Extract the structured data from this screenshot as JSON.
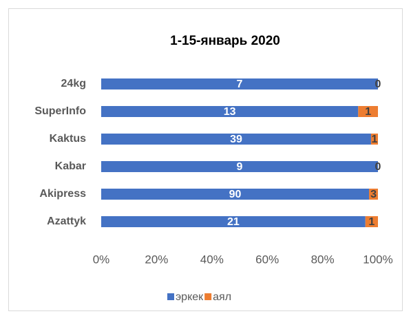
{
  "chart_data": {
    "type": "bar",
    "orientation": "horizontal",
    "stacking": "percent",
    "title": "1-15-январь 2020",
    "categories": [
      "24kg",
      "SuperInfo",
      "Kaktus",
      "Kabar",
      "Akipress",
      "Azattyk"
    ],
    "series": [
      {
        "name": "эркек",
        "color": "#4472c4",
        "values": [
          7,
          13,
          39,
          9,
          90,
          21
        ]
      },
      {
        "name": "аял",
        "color": "#ed7d31",
        "values": [
          0,
          1,
          1,
          0,
          3,
          1
        ]
      }
    ],
    "xlim": [
      0,
      100
    ],
    "xticks": [
      {
        "value": 0,
        "label": "0%"
      },
      {
        "value": 20,
        "label": "20%"
      },
      {
        "value": 40,
        "label": "40%"
      },
      {
        "value": 60,
        "label": "60%"
      },
      {
        "value": 80,
        "label": "80%"
      },
      {
        "value": 100,
        "label": "100%"
      }
    ],
    "legend": "bottom"
  }
}
